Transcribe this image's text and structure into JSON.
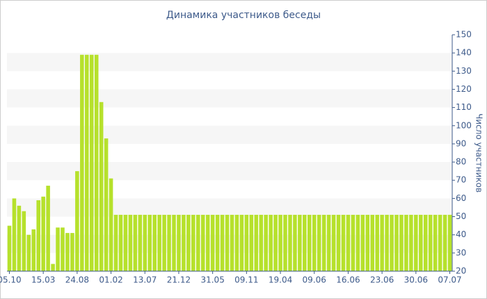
{
  "chart_data": {
    "type": "bar",
    "title": "Динамика участников беседы",
    "y_label": "Число участников",
    "categories": [
      "05.10",
      null,
      null,
      null,
      null,
      null,
      null,
      "15.03",
      null,
      null,
      null,
      null,
      null,
      null,
      "24.08",
      null,
      null,
      null,
      null,
      null,
      null,
      "01.02",
      null,
      null,
      null,
      null,
      null,
      null,
      "13.07",
      null,
      null,
      null,
      null,
      null,
      null,
      "21.12",
      null,
      null,
      null,
      null,
      null,
      null,
      "31.05",
      null,
      null,
      null,
      null,
      null,
      null,
      "09.11",
      null,
      null,
      null,
      null,
      null,
      null,
      "19.04",
      null,
      null,
      null,
      null,
      null,
      null,
      "09.06",
      null,
      null,
      null,
      null,
      null,
      null,
      "16.06",
      null,
      null,
      null,
      null,
      null,
      null,
      "23.06",
      null,
      null,
      null,
      null,
      null,
      null,
      "30.06",
      null,
      null,
      null,
      null,
      null,
      null,
      "07.07"
    ],
    "values": [
      45,
      60,
      56,
      53,
      40,
      43,
      59,
      61,
      67,
      24,
      44,
      44,
      41,
      41,
      75,
      139,
      139,
      139,
      139,
      113,
      93,
      71,
      51,
      51,
      51,
      51,
      51,
      51,
      51,
      51,
      51,
      51,
      51,
      51,
      51,
      51,
      51,
      51,
      51,
      51,
      51,
      51,
      51,
      51,
      51,
      51,
      51,
      51,
      51,
      51,
      51,
      51,
      51,
      51,
      51,
      51,
      51,
      51,
      51,
      51,
      51,
      51,
      51,
      51,
      51,
      51,
      51,
      51,
      51,
      51,
      51,
      51,
      51,
      51,
      51,
      51,
      51,
      51,
      51,
      51,
      51,
      51,
      51,
      51,
      51,
      51,
      51,
      51,
      51,
      51,
      51,
      51
    ],
    "color": "#b6e12c",
    "ylim": [
      20,
      150
    ],
    "yticks": [
      20,
      30,
      40,
      50,
      60,
      70,
      80,
      90,
      100,
      110,
      120,
      130,
      140,
      150
    ],
    "grid": true
  }
}
